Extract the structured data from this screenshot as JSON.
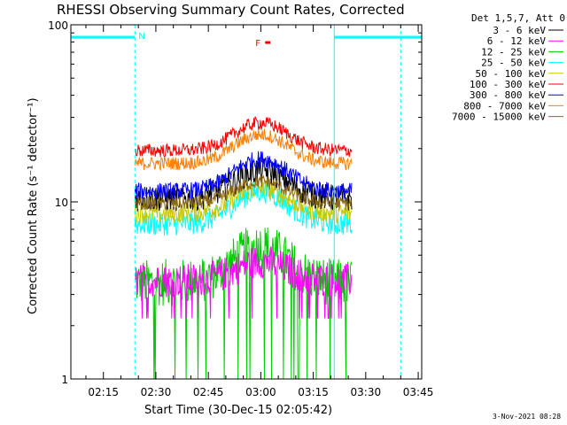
{
  "chart_data": {
    "type": "line",
    "title": "RHESSI Observing Summary Count Rates, Corrected",
    "xlabel": "Start Time (30-Dec-15 02:05:42)",
    "ylabel": "Corrected Count Rate (s⁻¹ detector⁻¹)",
    "y_scale": "log",
    "ylim": [
      1,
      100
    ],
    "xlim": [
      "02:05:42",
      "03:46:00"
    ],
    "y_ticks": [
      "1",
      "10",
      "100"
    ],
    "x_ticks": [
      "02:15",
      "02:30",
      "02:45",
      "03:00",
      "03:15",
      "03:30",
      "03:45"
    ],
    "legend_title": "Det 1,5,7, Att 0",
    "legend_position": "top-right, outside plot",
    "series": [
      {
        "name": "3 - 6 keV",
        "color": "#000000",
        "base": 10.5,
        "peak": 15,
        "noise": 0.08
      },
      {
        "name": "6 - 12 keV",
        "color": "#ff00ff",
        "base": 3.6,
        "peak": 4.6,
        "noise": 0.1
      },
      {
        "name": "12 - 25 keV",
        "color": "#00cc00",
        "base": 3.5,
        "peak": 5.6,
        "noise": 0.14
      },
      {
        "name": "25 - 50 keV",
        "color": "#00ffff",
        "base": 7.5,
        "peak": 11.5,
        "noise": 0.07
      },
      {
        "name": "50 - 100 keV",
        "color": "#c8c800",
        "base": 8.6,
        "peak": 12,
        "noise": 0.06
      },
      {
        "name": "100 - 300 keV",
        "color": "#ff0000",
        "base": 19.5,
        "peak": 28,
        "noise": 0.04
      },
      {
        "name": "300 - 800 keV",
        "color": "#0000ff",
        "base": 11.5,
        "peak": 17.5,
        "noise": 0.05
      },
      {
        "name": "800 - 7000 keV",
        "color": "#ff8000",
        "base": 16.5,
        "peak": 24,
        "noise": 0.04
      },
      {
        "name": "7000 - 15000 keV",
        "color": "#8b6914",
        "base": 9.8,
        "peak": 13,
        "noise": 0.04
      }
    ],
    "data_interval": [
      "02:24:00",
      "03:26:00"
    ],
    "peak_time": "03:00",
    "flags": [
      {
        "label": "N",
        "color": "#00ffff",
        "segments": [
          [
            "02:05:42",
            "02:24:00"
          ],
          [
            "03:21:00",
            "03:46:00"
          ]
        ]
      },
      {
        "label": "F",
        "color": "#ff0000",
        "marker_time": "03:02"
      }
    ],
    "night_boundaries": [
      "02:24:00",
      "03:21:00",
      "03:40:00"
    ]
  },
  "footer": {
    "timestamp": "3-Nov-2021 08:28"
  }
}
